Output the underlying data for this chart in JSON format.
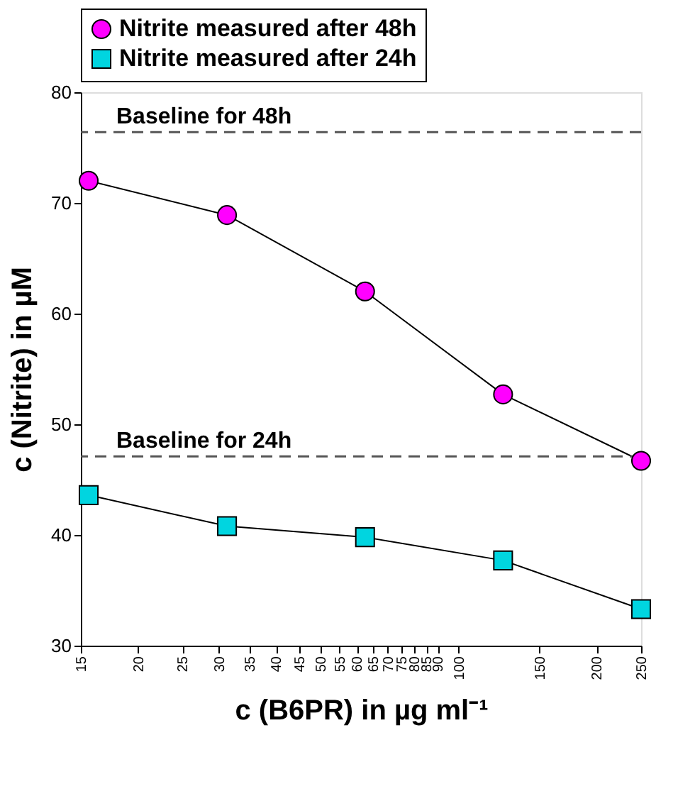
{
  "chart_data": {
    "type": "line",
    "xlabel": "c (B6PR) in µg ml⁻¹",
    "ylabel": "c (Nitrite) in µM",
    "x": [
      15.6,
      31.25,
      62.5,
      125,
      250
    ],
    "series": [
      {
        "name": "Nitrite measured after 48h",
        "color": "#ff00ff",
        "marker": "circle",
        "values": [
          72.0,
          68.9,
          62.0,
          52.7,
          46.7
        ]
      },
      {
        "name": "Nitrite measured after 24h",
        "color": "#00d5e0",
        "marker": "square",
        "values": [
          43.6,
          40.8,
          39.8,
          37.7,
          33.3
        ]
      }
    ],
    "log": "x",
    "xlim": [
      15,
      250
    ],
    "xticks": [
      15,
      20,
      25,
      30,
      35,
      40,
      45,
      50,
      55,
      60,
      65,
      70,
      75,
      80,
      85,
      90,
      100,
      150,
      200,
      250
    ],
    "ylim": [
      30,
      80
    ],
    "yticks": [
      30,
      40,
      50,
      60,
      70,
      80
    ],
    "ref_lines": [
      {
        "axis": "y",
        "value": 76.4,
        "label": "Baseline for 48h",
        "color": "#555555",
        "line_style": "dashed"
      },
      {
        "axis": "y",
        "value": 47.1,
        "label": "Baseline for 24h",
        "color": "#555555",
        "line_style": "dashed"
      }
    ],
    "grid": false,
    "legend": "top",
    "line_style": "solid"
  }
}
